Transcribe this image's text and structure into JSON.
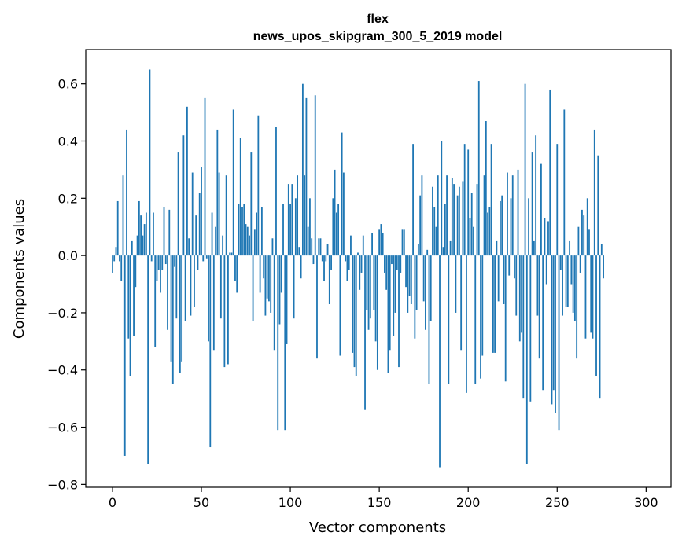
{
  "chart_data": {
    "type": "bar",
    "title_line1": "flex",
    "title_line2": "news_upos_skipgram_300_5_2019 model",
    "xlabel": "Vector components",
    "ylabel": "Components values",
    "xlim": [
      -15,
      314
    ],
    "ylim": [
      -0.81,
      0.72
    ],
    "xticks": [
      0,
      50,
      100,
      150,
      200,
      250,
      300
    ],
    "xtick_labels": [
      "0",
      "50",
      "100",
      "150",
      "200",
      "250",
      "300"
    ],
    "yticks": [
      -0.8,
      -0.6,
      -0.4,
      -0.2,
      0.0,
      0.2,
      0.4,
      0.6
    ],
    "ytick_labels": [
      "−0.8",
      "−0.6",
      "−0.4",
      "−0.2",
      "0.0",
      "0.2",
      "0.4",
      "0.6"
    ],
    "bar_color": "#1f77b4",
    "values": [
      -0.06,
      -0.02,
      0.03,
      0.19,
      -0.02,
      -0.09,
      0.28,
      -0.7,
      0.44,
      -0.29,
      -0.42,
      0.05,
      -0.28,
      -0.11,
      0.07,
      0.19,
      0.14,
      0.07,
      0.11,
      0.15,
      -0.73,
      0.65,
      -0.02,
      0.15,
      -0.32,
      -0.09,
      -0.05,
      -0.13,
      -0.05,
      0.17,
      -0.03,
      -0.26,
      0.16,
      -0.37,
      -0.45,
      -0.04,
      -0.22,
      0.36,
      -0.41,
      -0.37,
      0.42,
      -0.23,
      0.52,
      0.06,
      -0.21,
      0.29,
      -0.18,
      0.14,
      -0.05,
      0.22,
      0.31,
      -0.02,
      0.55,
      -0.01,
      -0.3,
      -0.67,
      0.15,
      -0.33,
      0.1,
      0.44,
      0.29,
      -0.22,
      0.07,
      -0.39,
      0.28,
      -0.38,
      0.01,
      0.01,
      0.51,
      -0.09,
      -0.13,
      0.18,
      0.41,
      0.17,
      0.18,
      0.11,
      0.1,
      0.07,
      0.36,
      -0.23,
      0.09,
      0.15,
      0.49,
      -0.13,
      0.17,
      -0.08,
      -0.21,
      -0.15,
      -0.16,
      -0.2,
      0.06,
      -0.33,
      0.45,
      -0.61,
      -0.24,
      -0.13,
      0.18,
      -0.61,
      -0.31,
      0.25,
      0.18,
      0.25,
      -0.22,
      0.2,
      0.28,
      0.03,
      -0.08,
      0.6,
      0.28,
      0.55,
      0.1,
      0.2,
      0.06,
      -0.03,
      0.56,
      -0.36,
      0.06,
      0.06,
      -0.02,
      -0.09,
      -0.02,
      0.04,
      -0.17,
      -0.05,
      0.2,
      0.3,
      0.15,
      0.18,
      -0.35,
      0.43,
      0.29,
      -0.02,
      -0.09,
      -0.05,
      0.07,
      -0.34,
      -0.39,
      -0.42,
      0.01,
      -0.12,
      -0.06,
      0.07,
      -0.54,
      -0.19,
      -0.26,
      -0.22,
      0.08,
      -0.19,
      -0.3,
      -0.4,
      0.09,
      0.11,
      0.08,
      -0.06,
      -0.12,
      -0.41,
      -0.33,
      -0.03,
      -0.28,
      -0.2,
      -0.05,
      -0.39,
      -0.06,
      0.09,
      0.09,
      -0.11,
      -0.2,
      -0.14,
      -0.17,
      0.39,
      -0.29,
      -0.19,
      0.04,
      0.21,
      0.28,
      -0.16,
      -0.26,
      0.02,
      -0.45,
      -0.23,
      0.24,
      0.17,
      0.1,
      0.28,
      -0.74,
      0.4,
      0.03,
      0.18,
      0.28,
      -0.45,
      0.05,
      0.27,
      0.25,
      -0.2,
      0.21,
      0.24,
      -0.33,
      0.26,
      0.39,
      -0.48,
      0.37,
      0.13,
      0.22,
      0.1,
      -0.45,
      0.25,
      0.61,
      -0.43,
      -0.35,
      0.28,
      0.47,
      0.15,
      0.17,
      0.39,
      -0.34,
      -0.34,
      0.05,
      -0.16,
      0.19,
      0.21,
      -0.17,
      -0.44,
      0.29,
      -0.07,
      0.2,
      0.28,
      -0.08,
      -0.21,
      0.3,
      -0.3,
      -0.27,
      -0.5,
      0.6,
      -0.73,
      0.2,
      -0.51,
      0.36,
      0.05,
      0.42,
      -0.21,
      -0.36,
      0.32,
      -0.47,
      0.13,
      -0.1,
      0.12,
      0.58,
      -0.52,
      -0.47,
      -0.55,
      0.39,
      -0.61,
      -0.05,
      -0.21,
      0.51,
      -0.18,
      -0.18,
      0.05,
      -0.1,
      -0.2,
      -0.23,
      -0.36,
      0.1,
      -0.06,
      0.16,
      0.14,
      -0.29,
      0.2,
      0.09,
      -0.27,
      -0.29,
      0.44,
      -0.42,
      0.35,
      -0.5,
      0.04,
      -0.08
    ]
  }
}
